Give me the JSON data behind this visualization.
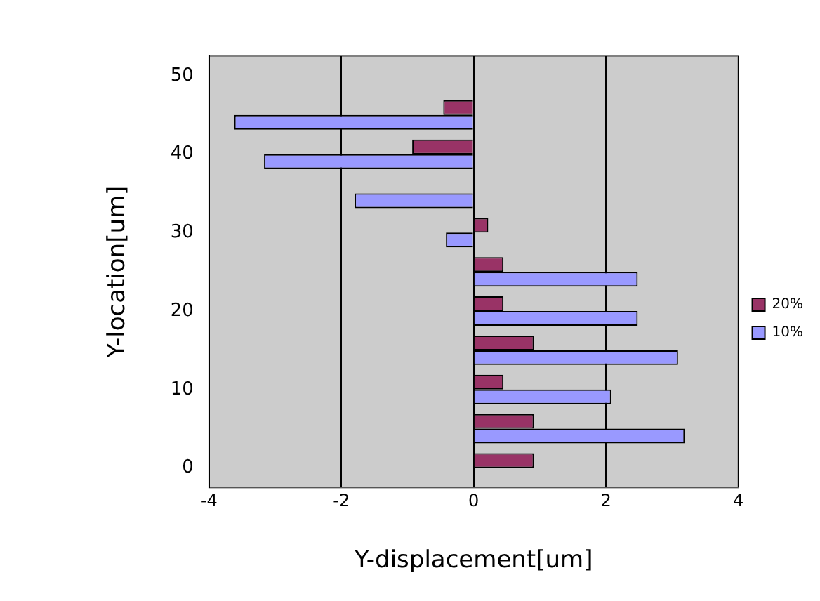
{
  "chart_data": {
    "type": "bar",
    "orientation": "horizontal",
    "xlabel": "Y-displacement[um]",
    "ylabel": "Y-location[um]",
    "categories": [
      "50",
      null,
      "40",
      null,
      "30",
      null,
      "20",
      null,
      "10",
      null,
      "0"
    ],
    "series": [
      {
        "name": "20%",
        "color": "#993366",
        "values": [
          null,
          -0.46,
          -0.93,
          null,
          0.22,
          0.45,
          0.45,
          0.91,
          0.45,
          0.91,
          0.91
        ]
      },
      {
        "name": "10%",
        "color": "#9999ff",
        "values": [
          null,
          -3.62,
          -3.17,
          -1.8,
          -0.42,
          2.48,
          2.48,
          3.09,
          2.08,
          3.19,
          null
        ]
      }
    ],
    "xlim": [
      -4,
      4
    ],
    "xticks": [
      -4,
      -2,
      0,
      2,
      4
    ],
    "grid": "x",
    "legend": "right"
  }
}
